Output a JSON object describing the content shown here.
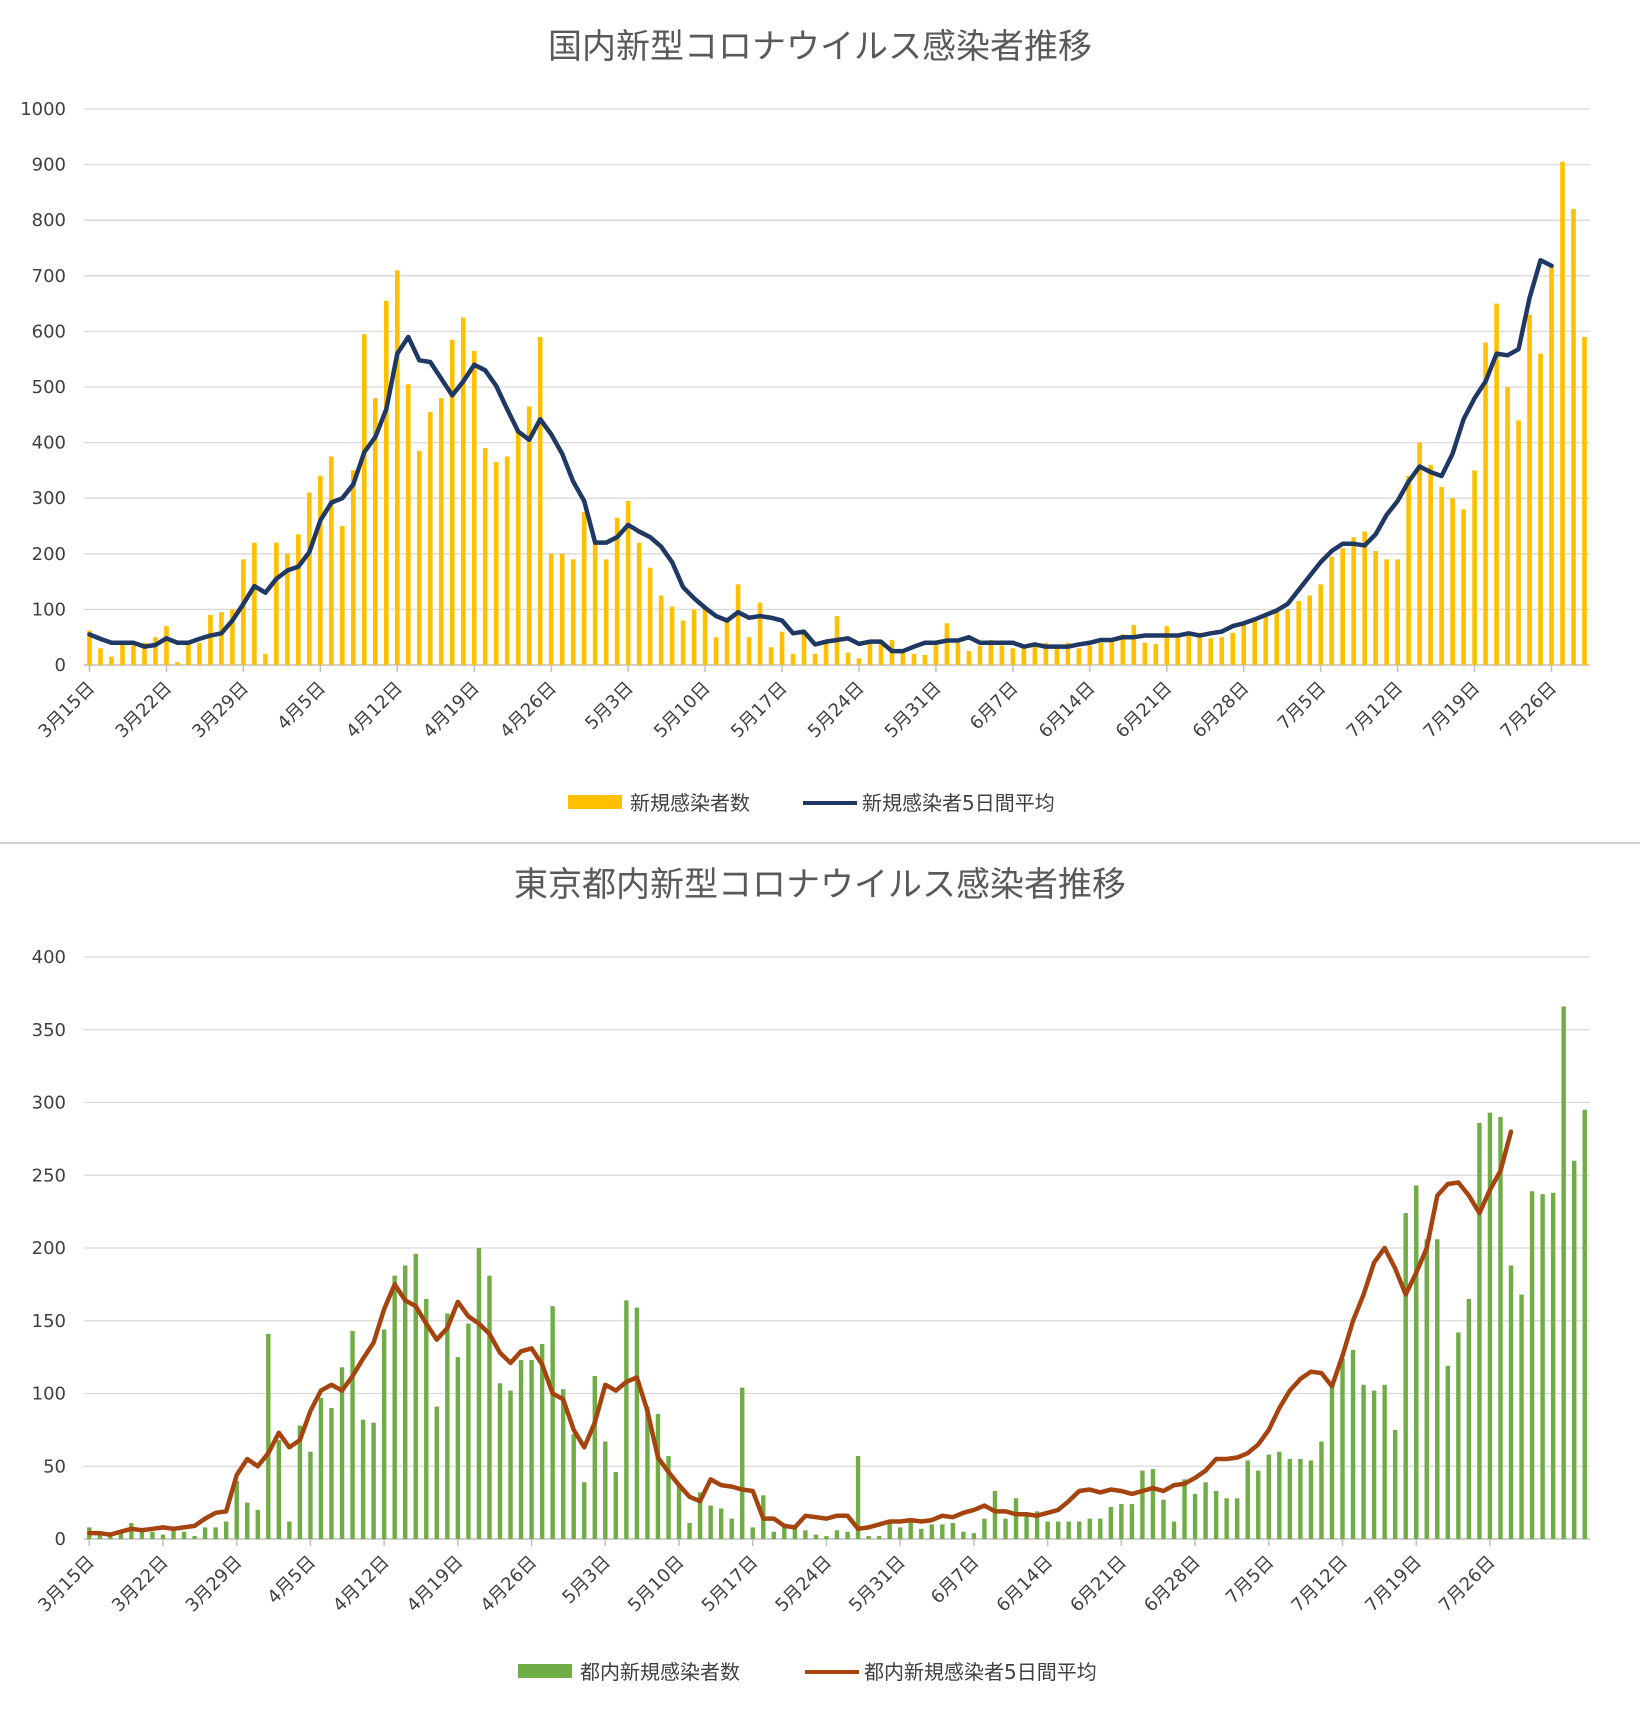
{
  "charts": {
    "national": {
      "title": "国内新型コロナウイルス感染者推移",
      "legend_bar": "新規感染者数",
      "legend_line": "新規感染者5日間平均",
      "bar_color": "#FFC000",
      "line_color": "#203864"
    },
    "tokyo": {
      "title": "東京都内新型コロナウイルス感染者推移",
      "legend_bar": "都内新規感染者数",
      "legend_line": "都内新規感染者5日間平均",
      "bar_color": "#70AD47",
      "line_color": "#A5440F"
    }
  },
  "chart_data": [
    {
      "type": "bar",
      "title": "国内新型コロナウイルス感染者推移",
      "categories_label_every": 7,
      "date_start": "3月15日",
      "date_end": "7月26日",
      "x_tick_labels": [
        "3月15日",
        "3月22日",
        "3月29日",
        "4月5日",
        "4月12日",
        "4月19日",
        "4月26日",
        "5月3日",
        "5月10日",
        "5月17日",
        "5月24日",
        "5月31日",
        "6月7日",
        "6月14日",
        "6月21日",
        "6月28日",
        "7月5日",
        "7月12日",
        "7月19日",
        "7月26日"
      ],
      "y_tick_labels": [
        "0",
        "100",
        "200",
        "300",
        "400",
        "500",
        "600",
        "700",
        "800",
        "900",
        "1000"
      ],
      "ylim": [
        0,
        1000
      ],
      "grid": true,
      "legend": "bottom",
      "series": [
        {
          "name": "新規感染者数",
          "type": "bar",
          "values": [
            62,
            30,
            15,
            38,
            35,
            40,
            50,
            70,
            5,
            40,
            40,
            90,
            95,
            100,
            190,
            220,
            20,
            220,
            200,
            235,
            310,
            340,
            375,
            250,
            350,
            595,
            480,
            655,
            710,
            505,
            385,
            455,
            480,
            585,
            625,
            565,
            390,
            365,
            375,
            420,
            465,
            590,
            200,
            200,
            190,
            275,
            225,
            190,
            265,
            295,
            220,
            175,
            125,
            105,
            80,
            100,
            105,
            50,
            80,
            145,
            50,
            112,
            32,
            60,
            20,
            55,
            20,
            45,
            88,
            22,
            12,
            40,
            40,
            45,
            22,
            20,
            18,
            40,
            75,
            40,
            25,
            35,
            45,
            35,
            30,
            38,
            40,
            40,
            35,
            40,
            30,
            35,
            40,
            45,
            55,
            72,
            40,
            38,
            70,
            50,
            60,
            58,
            48,
            50,
            58,
            75,
            85,
            90,
            95,
            100,
            115,
            125,
            145,
            195,
            210,
            230,
            240,
            205,
            190,
            190,
            340,
            400,
            360,
            320,
            300,
            280,
            350,
            580,
            650,
            500,
            440,
            630,
            560,
            720,
            905,
            820,
            590
          ]
        },
        {
          "name": "新規感染者5日間平均",
          "type": "line",
          "values": [
            55,
            47,
            40,
            40,
            40,
            33,
            36,
            48,
            40,
            40,
            47,
            53,
            57,
            80,
            110,
            142,
            130,
            155,
            170,
            177,
            203,
            260,
            292,
            300,
            325,
            383,
            410,
            460,
            560,
            590,
            548,
            545,
            515,
            485,
            510,
            540,
            530,
            502,
            460,
            420,
            405,
            442,
            415,
            380,
            330,
            295,
            220,
            220,
            230,
            252,
            240,
            230,
            213,
            185,
            140,
            120,
            103,
            88,
            80,
            95,
            85,
            88,
            85,
            80,
            57,
            60,
            37,
            42,
            45,
            48,
            38,
            42,
            42,
            25,
            25,
            33,
            40,
            40,
            44,
            44,
            50,
            40,
            40,
            40,
            40,
            33,
            37,
            33,
            33,
            33,
            37,
            40,
            45,
            45,
            50,
            50,
            53,
            53,
            53,
            53,
            57,
            53,
            57,
            60,
            70,
            75,
            82,
            90,
            98,
            110,
            135,
            160,
            185,
            205,
            218,
            218,
            215,
            235,
            270,
            295,
            330,
            357,
            347,
            340,
            380,
            442,
            480,
            510,
            560,
            557,
            568,
            660,
            728,
            718
          ]
        }
      ]
    },
    {
      "type": "bar",
      "title": "東京都内新型コロナウイルス感染者推移",
      "date_start": "3月15日",
      "date_end": "7月26日",
      "x_tick_labels": [
        "3月15日",
        "3月22日",
        "3月29日",
        "4月5日",
        "4月12日",
        "4月19日",
        "4月26日",
        "5月3日",
        "5月10日",
        "5月17日",
        "5月24日",
        "5月31日",
        "6月7日",
        "6月14日",
        "6月21日",
        "6月28日",
        "7月5日",
        "7月12日",
        "7月19日",
        "7月26日"
      ],
      "y_tick_labels": [
        "0",
        "50",
        "100",
        "150",
        "200",
        "250",
        "300",
        "350",
        "400"
      ],
      "ylim": [
        0,
        400
      ],
      "grid": true,
      "legend": "bottom",
      "series": [
        {
          "name": "都内新規感染者数",
          "type": "bar",
          "values": [
            8,
            3,
            2,
            4,
            11,
            7,
            5,
            3,
            7,
            5,
            2,
            8,
            8,
            12,
            40,
            25,
            20,
            141,
            68,
            12,
            78,
            60,
            97,
            90,
            118,
            143,
            82,
            80,
            144,
            181,
            188,
            196,
            165,
            91,
            155,
            125,
            148,
            200,
            181,
            107,
            102,
            123,
            123,
            134,
            160,
            103,
            72,
            39,
            112,
            67,
            46,
            164,
            159,
            91,
            86,
            57,
            38,
            11,
            32,
            23,
            21,
            14,
            104,
            8,
            30,
            5,
            10,
            9,
            6,
            3,
            2,
            6,
            5,
            57,
            2,
            2,
            12,
            8,
            14,
            7,
            10,
            10,
            11,
            5,
            4,
            14,
            33,
            14,
            28,
            17,
            19,
            12,
            12,
            12,
            12,
            14,
            14,
            22,
            24,
            24,
            47,
            48,
            27,
            12,
            41,
            31,
            39,
            33,
            28,
            28,
            54,
            47,
            58,
            60,
            55,
            55,
            54,
            67,
            107,
            124,
            130,
            106,
            102,
            106,
            75,
            224,
            243,
            206,
            206,
            119,
            142,
            165,
            286,
            293,
            290,
            188,
            168,
            239,
            237,
            238,
            366,
            260,
            295
          ]
        },
        {
          "name": "都内新規感染者5日間平均",
          "type": "line",
          "values": [
            4,
            4,
            3,
            5,
            7,
            6,
            7,
            8,
            7,
            8,
            9,
            14,
            18,
            19,
            44,
            55,
            50,
            59,
            73,
            63,
            68,
            88,
            102,
            106,
            102,
            112,
            124,
            135,
            158,
            175,
            164,
            160,
            148,
            137,
            145,
            163,
            153,
            148,
            141,
            128,
            121,
            129,
            131,
            120,
            100,
            96,
            75,
            63,
            80,
            106,
            102,
            108,
            111,
            88,
            56,
            46,
            37,
            29,
            26,
            41,
            37,
            36,
            34,
            33,
            14,
            14,
            9,
            8,
            16,
            15,
            14,
            16,
            16,
            7,
            8,
            10,
            12,
            12,
            13,
            12,
            13,
            16,
            15,
            18,
            20,
            23,
            19,
            19,
            17,
            17,
            16,
            18,
            20,
            26,
            33,
            34,
            32,
            34,
            33,
            31,
            33,
            35,
            33,
            37,
            38,
            42,
            47,
            55,
            55,
            56,
            59,
            65,
            75,
            90,
            102,
            110,
            115,
            114,
            105,
            126,
            150,
            168,
            190,
            200,
            186,
            168,
            183,
            200,
            236,
            244,
            245,
            236,
            224,
            240,
            253,
            280
          ]
        }
      ]
    }
  ]
}
